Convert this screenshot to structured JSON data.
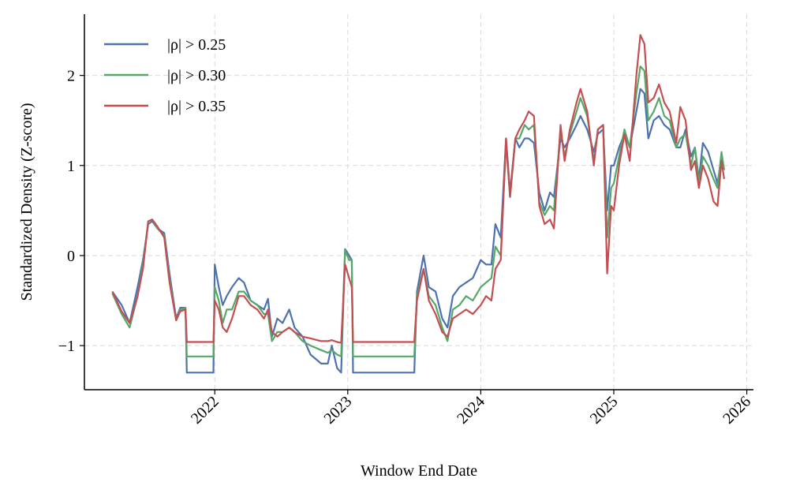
{
  "chart_data": {
    "type": "line",
    "xlabel": "Window End Date",
    "ylabel": "Standardized Density (Z-score)",
    "xlim": [
      2021.02,
      2026.05
    ],
    "ylim": [
      -1.49,
      2.68
    ],
    "xticks": [
      2022,
      2023,
      2024,
      2025,
      2026
    ],
    "yticks": [
      {
        "value": -1,
        "label": "−1"
      },
      0,
      1,
      2
    ],
    "grid": true,
    "legend": "upper left",
    "x": [
      2021.23,
      2021.3,
      2021.36,
      2021.42,
      2021.46,
      2021.5,
      2021.53,
      2021.57,
      2021.62,
      2021.66,
      2021.71,
      2021.74,
      2021.78,
      2021.79,
      2021.99,
      2022.0,
      2022.03,
      2022.06,
      2022.09,
      2022.13,
      2022.18,
      2022.22,
      2022.27,
      2022.32,
      2022.37,
      2022.4,
      2022.43,
      2022.47,
      2022.51,
      2022.56,
      2022.6,
      2022.66,
      2022.72,
      2022.8,
      2022.85,
      2022.88,
      2022.92,
      2022.95,
      2022.98,
      2023.01,
      2023.03,
      2023.04,
      2023.5,
      2023.52,
      2023.57,
      2023.61,
      2023.66,
      2023.71,
      2023.75,
      2023.79,
      2023.84,
      2023.89,
      2023.94,
      2024.0,
      2024.04,
      2024.08,
      2024.11,
      2024.15,
      2024.19,
      2024.22,
      2024.26,
      2024.29,
      2024.33,
      2024.36,
      2024.4,
      2024.44,
      2024.48,
      2024.52,
      2024.55,
      2024.6,
      2024.63,
      2024.67,
      2024.72,
      2024.75,
      2024.8,
      2024.85,
      2024.88,
      2024.92,
      2024.95,
      2024.98,
      2025.0,
      2025.04,
      2025.08,
      2025.12,
      2025.17,
      2025.2,
      2025.23,
      2025.26,
      2025.3,
      2025.34,
      2025.38,
      2025.42,
      2025.47,
      2025.5,
      2025.54,
      2025.58,
      2025.61,
      2025.64,
      2025.67,
      2025.71,
      2025.75,
      2025.78,
      2025.81,
      2025.83
    ],
    "series": [
      {
        "name": "|ρ| > 0.25",
        "color": "#4c72b0",
        "values": [
          -0.4,
          -0.55,
          -0.75,
          -0.35,
          -0.05,
          0.35,
          0.38,
          0.3,
          0.25,
          -0.2,
          -0.7,
          -0.58,
          -0.58,
          -1.3,
          -1.3,
          -0.1,
          -0.35,
          -0.55,
          -0.45,
          -0.35,
          -0.25,
          -0.3,
          -0.5,
          -0.55,
          -0.6,
          -0.48,
          -0.9,
          -0.7,
          -0.75,
          -0.6,
          -0.8,
          -0.9,
          -1.1,
          -1.2,
          -1.2,
          -1.0,
          -1.25,
          -1.3,
          0.07,
          0.0,
          -0.05,
          -1.3,
          -1.3,
          -0.4,
          0.0,
          -0.35,
          -0.4,
          -0.7,
          -0.8,
          -0.45,
          -0.35,
          -0.3,
          -0.25,
          -0.05,
          -0.1,
          -0.1,
          0.35,
          0.2,
          1.3,
          0.7,
          1.3,
          1.2,
          1.3,
          1.3,
          1.25,
          0.7,
          0.5,
          0.7,
          0.65,
          1.3,
          1.2,
          1.3,
          1.45,
          1.55,
          1.4,
          1.15,
          1.35,
          1.4,
          0.5,
          1.0,
          1.0,
          1.2,
          1.35,
          1.2,
          1.6,
          1.85,
          1.8,
          1.3,
          1.5,
          1.55,
          1.45,
          1.4,
          1.2,
          1.2,
          1.4,
          1.1,
          1.2,
          0.85,
          1.25,
          1.15,
          0.95,
          0.8,
          1.1,
          0.95
        ]
      },
      {
        "name": "|ρ| > 0.30",
        "color": "#55a868",
        "values": [
          -0.42,
          -0.65,
          -0.8,
          -0.45,
          -0.1,
          0.38,
          0.4,
          0.3,
          0.22,
          -0.25,
          -0.72,
          -0.6,
          -0.58,
          -1.12,
          -1.12,
          -0.35,
          -0.5,
          -0.75,
          -0.6,
          -0.6,
          -0.4,
          -0.4,
          -0.5,
          -0.55,
          -0.65,
          -0.65,
          -0.95,
          -0.85,
          -0.85,
          -0.8,
          -0.85,
          -0.95,
          -1.0,
          -1.05,
          -1.08,
          -1.05,
          -1.1,
          -1.12,
          0.06,
          -0.05,
          -0.05,
          -1.12,
          -1.12,
          -0.45,
          -0.15,
          -0.45,
          -0.55,
          -0.8,
          -0.95,
          -0.6,
          -0.55,
          -0.45,
          -0.5,
          -0.35,
          -0.3,
          -0.25,
          0.1,
          0.0,
          1.25,
          0.65,
          1.3,
          1.3,
          1.45,
          1.4,
          1.45,
          0.6,
          0.45,
          0.55,
          0.5,
          1.4,
          1.1,
          1.35,
          1.6,
          1.75,
          1.55,
          1.05,
          1.4,
          1.45,
          0.2,
          0.75,
          0.8,
          1.1,
          1.4,
          1.2,
          1.8,
          2.1,
          2.05,
          1.5,
          1.6,
          1.75,
          1.55,
          1.5,
          1.2,
          1.3,
          1.35,
          1.0,
          1.2,
          0.8,
          1.1,
          1.0,
          0.85,
          0.75,
          1.15,
          0.95
        ]
      },
      {
        "name": "|ρ| > 0.35",
        "color": "#c44e52",
        "values": [
          -0.4,
          -0.62,
          -0.75,
          -0.45,
          -0.15,
          0.38,
          0.4,
          0.32,
          0.2,
          -0.3,
          -0.72,
          -0.62,
          -0.6,
          -0.96,
          -0.96,
          -0.5,
          -0.6,
          -0.8,
          -0.85,
          -0.7,
          -0.45,
          -0.45,
          -0.55,
          -0.6,
          -0.7,
          -0.6,
          -0.85,
          -0.9,
          -0.85,
          -0.8,
          -0.85,
          -0.9,
          -0.92,
          -0.95,
          -0.95,
          -0.94,
          -0.96,
          -0.97,
          -0.1,
          -0.25,
          -0.35,
          -0.96,
          -0.96,
          -0.5,
          -0.15,
          -0.5,
          -0.65,
          -0.85,
          -0.9,
          -0.7,
          -0.65,
          -0.6,
          -0.65,
          -0.55,
          -0.45,
          -0.5,
          -0.15,
          -0.05,
          1.3,
          0.65,
          1.3,
          1.4,
          1.5,
          1.6,
          1.55,
          0.55,
          0.35,
          0.4,
          0.3,
          1.45,
          1.05,
          1.4,
          1.7,
          1.85,
          1.6,
          1.0,
          1.4,
          1.45,
          -0.2,
          0.55,
          0.5,
          1.0,
          1.35,
          1.05,
          2.0,
          2.45,
          2.35,
          1.7,
          1.75,
          1.9,
          1.7,
          1.6,
          1.25,
          1.65,
          1.5,
          0.95,
          1.05,
          0.75,
          1.0,
          0.85,
          0.6,
          0.55,
          1.05,
          0.85
        ]
      }
    ]
  }
}
